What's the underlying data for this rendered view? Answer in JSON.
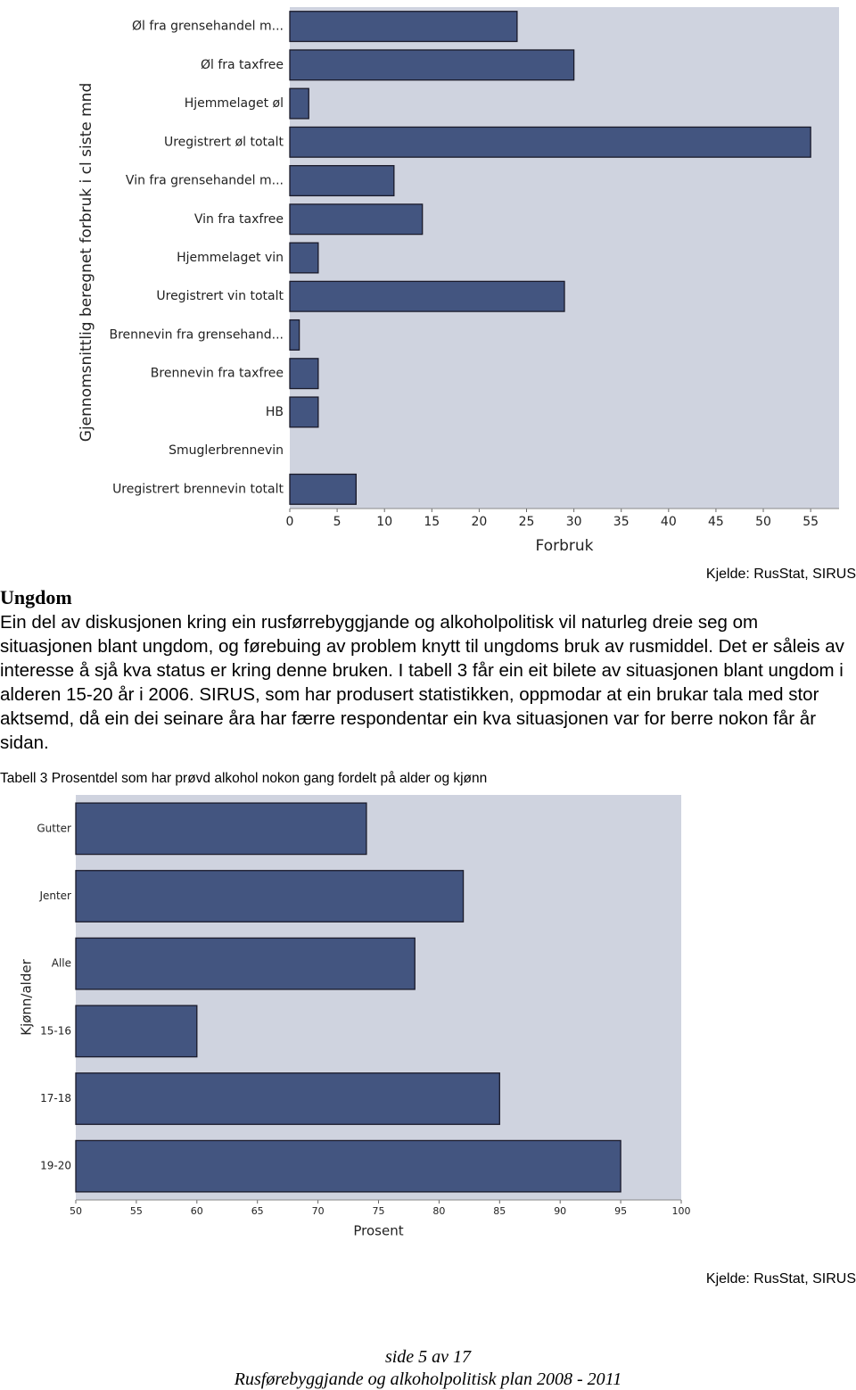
{
  "chart_data": [
    {
      "type": "bar",
      "orientation": "horizontal",
      "y_label": "Gjennomsnittlig beregnet forbruk i cl siste mnd",
      "x_label": "Forbruk",
      "categories": [
        "Øl fra grensehandel m...",
        "Øl fra taxfree",
        "Hjemmelaget øl",
        "Uregistrert øl totalt",
        "Vin fra grensehandel m...",
        "Vin fra taxfree",
        "Hjemmelaget vin",
        "Uregistrert vin totalt",
        "Brennevin fra grensehand...",
        "Brennevin fra taxfree",
        "HB",
        "Smuglerbrennevin",
        "Uregistrert brennevin totalt"
      ],
      "values": [
        24,
        30,
        2,
        55,
        11,
        14,
        3,
        29,
        1,
        3,
        3,
        0,
        7
      ],
      "color": "#435580",
      "xlim": [
        0,
        58
      ],
      "xticks": [
        0,
        5,
        10,
        15,
        20,
        25,
        30,
        35,
        40,
        45,
        50,
        55
      ]
    },
    {
      "type": "bar",
      "orientation": "horizontal",
      "y_label": "Kjønn/alder",
      "x_label": "Prosent",
      "categories": [
        "Gutter",
        "Jenter",
        "Alle",
        "15-16",
        "17-18",
        "19-20"
      ],
      "values": [
        74,
        82,
        78,
        60,
        85,
        95
      ],
      "color": "#435580",
      "xlim": [
        50,
        100
      ],
      "xticks": [
        50,
        55,
        60,
        65,
        70,
        75,
        80,
        85,
        90,
        95,
        100
      ]
    }
  ],
  "source_1": "Kjelde: RusStat, SIRUS",
  "heading": "Ungdom",
  "paragraph": "Ein del av diskusjonen kring ein rusførrebyggjande og alkoholpolitisk vil naturleg dreie seg om situasjonen blant ungdom, og førebuing av problem knytt til ungdoms bruk av rusmiddel. Det er såleis av interesse å sjå kva status er kring denne bruken. I tabell 3 får ein eit bilete av situasjonen blant ungdom i alderen 15-20 år i 2006. SIRUS, som har produsert statistikken, oppmodar at ein brukar tala med stor aktsemd, då ein dei seinare åra har færre respondentar ein kva situasjonen var for berre nokon får år sidan.",
  "caption": "Tabell 3 Prosentdel som har prøvd alkohol nokon gang fordelt på alder og kjønn",
  "source_2": "Kjelde: RusStat, SIRUS",
  "footer": {
    "page": "side 5 av 17",
    "plan": "Rusførebyggjande og alkoholpolitisk plan 2008 - 2011"
  }
}
